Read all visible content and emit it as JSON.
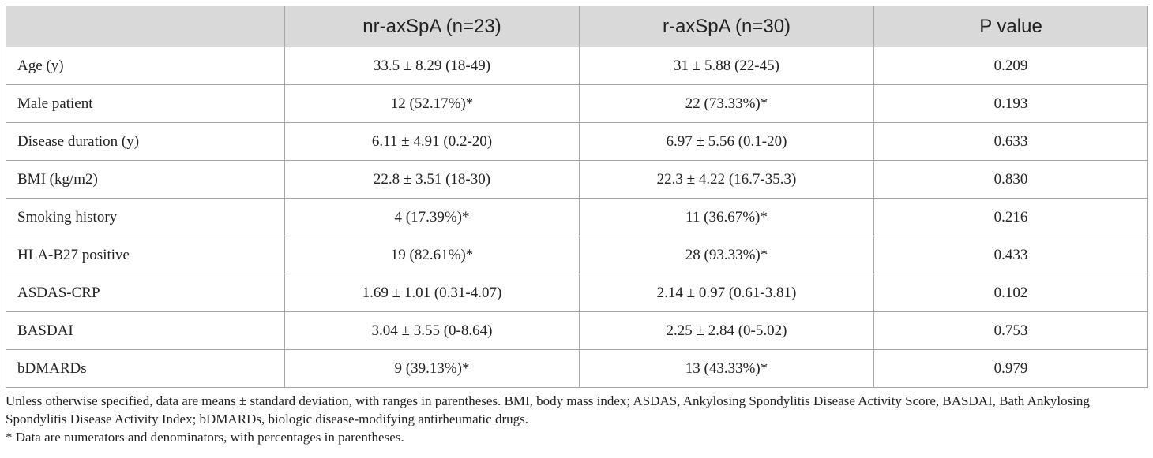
{
  "table": {
    "headers": [
      "",
      "nr-axSpA (n=23)",
      "r-axSpA (n=30)",
      "P value"
    ],
    "rows": [
      [
        "Age (y)",
        "33.5 ± 8.29 (18-49)",
        "31 ± 5.88 (22-45)",
        "0.209"
      ],
      [
        "Male patient",
        "12 (52.17%)*",
        "22 (73.33%)*",
        "0.193"
      ],
      [
        "Disease duration (y)",
        "6.11 ± 4.91 (0.2-20)",
        "6.97 ± 5.56 (0.1-20)",
        "0.633"
      ],
      [
        "BMI (kg/m2)",
        "22.8 ± 3.51 (18-30)",
        "22.3 ± 4.22 (16.7-35.3)",
        "0.830"
      ],
      [
        "Smoking history",
        "4 (17.39%)*",
        "11 (36.67%)*",
        "0.216"
      ],
      [
        "HLA-B27 positive",
        "19 (82.61%)*",
        "28 (93.33%)*",
        "0.433"
      ],
      [
        "ASDAS-CRP",
        "1.69 ± 1.01 (0.31-4.07)",
        "2.14 ± 0.97 (0.61-3.81)",
        "0.102"
      ],
      [
        "BASDAI",
        "3.04 ± 3.55 (0-8.64)",
        "2.25 ± 2.84 (0-5.02)",
        "0.753"
      ],
      [
        "bDMARDs",
        "9 (39.13%)*",
        "13 (43.33%)*",
        "0.979"
      ]
    ]
  },
  "footnotes": {
    "note1": "Unless otherwise specified, data are means ± standard deviation, with ranges in parentheses. BMI, body mass index; ASDAS, Ankylosing Spondylitis Disease Activity Score, BASDAI, Bath Ankylosing Spondylitis Disease Activity Index; bDMARDs, biologic disease-modifying antirheumatic drugs.",
    "note2": "* Data are numerators and denominators, with percentages in parentheses."
  },
  "colors": {
    "header_bg": "#d9d9d9",
    "border": "#a6a6a6",
    "text": "#222222"
  }
}
